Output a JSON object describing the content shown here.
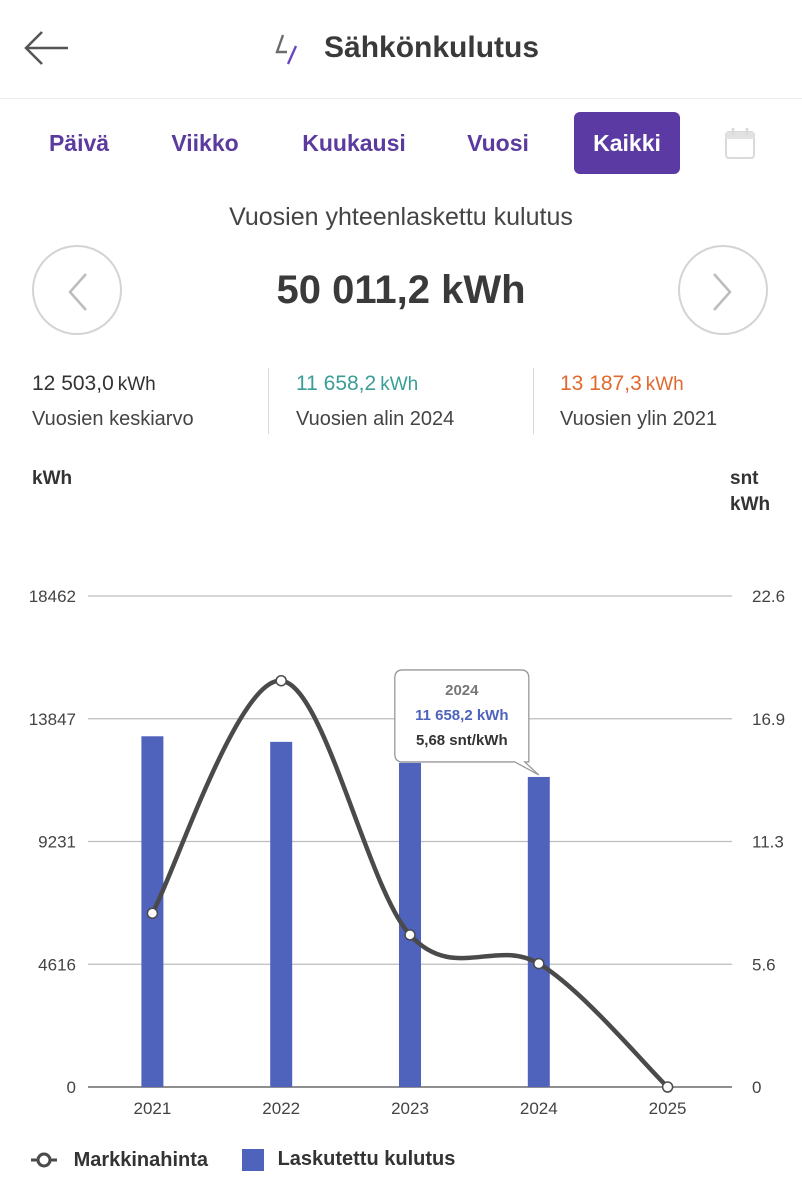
{
  "header": {
    "title": "Sähkönkulutus",
    "back_icon": "arrow-left-icon",
    "logo_icon": "lightning-logo-icon"
  },
  "tabs": [
    {
      "label": "Päivä",
      "active": false
    },
    {
      "label": "Viikko",
      "active": false
    },
    {
      "label": "Kuukausi",
      "active": false
    },
    {
      "label": "Vuosi",
      "active": false
    },
    {
      "label": "Kaikki",
      "active": true
    }
  ],
  "calendar_icon": "calendar-icon",
  "summary": {
    "period_label": "Vuosien yhteenlaskettu kulutus",
    "total": "50 011,2 kWh",
    "prev_icon": "chevron-left-icon",
    "next_icon": "chevron-right-icon"
  },
  "stats": [
    {
      "value": "12 503,0",
      "unit": "kWh",
      "label": "Vuosien keskiarvo",
      "color": "#333333"
    },
    {
      "value": "11 658,2",
      "unit": "kWh",
      "label": "Vuosien alin 2024",
      "color": "#3a9e96"
    },
    {
      "value": "13 187,3",
      "unit": "kWh",
      "label": "Vuosien ylin 2021",
      "color": "#e0692e"
    }
  ],
  "axis": {
    "left_unit": "kWh",
    "right_unit_line1": "snt",
    "right_unit_line2": "kWh"
  },
  "tooltip": {
    "year": "2024",
    "consumption": "11 658,2 kWh",
    "price": "5,68 snt/kWh"
  },
  "legend": {
    "line_label": "Markkinahinta",
    "bar_label": "Laskutettu kulutus"
  },
  "colors": {
    "accent": "#5c3aa3",
    "bar": "#4f63bd",
    "line": "#4a4a4a"
  },
  "chart_data": {
    "type": "bar",
    "categories": [
      "2021",
      "2022",
      "2023",
      "2024",
      "2025"
    ],
    "left_ticks": [
      "0",
      "4616",
      "9231",
      "13847",
      "18462"
    ],
    "right_ticks": [
      "0",
      "5.6",
      "11.3",
      "16.9",
      "22.6"
    ],
    "ylim": [
      0,
      18462
    ],
    "y2lim": [
      0,
      22.6
    ],
    "series": [
      {
        "name": "Laskutettu kulutus",
        "type": "bar",
        "axis": "left",
        "values": [
          13187.3,
          12978,
          12188,
          11658.2,
          0
        ]
      },
      {
        "name": "Markkinahinta",
        "type": "line",
        "axis": "right",
        "values": [
          8.0,
          18.7,
          7.0,
          5.68,
          0
        ]
      }
    ],
    "grid": true,
    "legend_position": "bottom-left"
  }
}
